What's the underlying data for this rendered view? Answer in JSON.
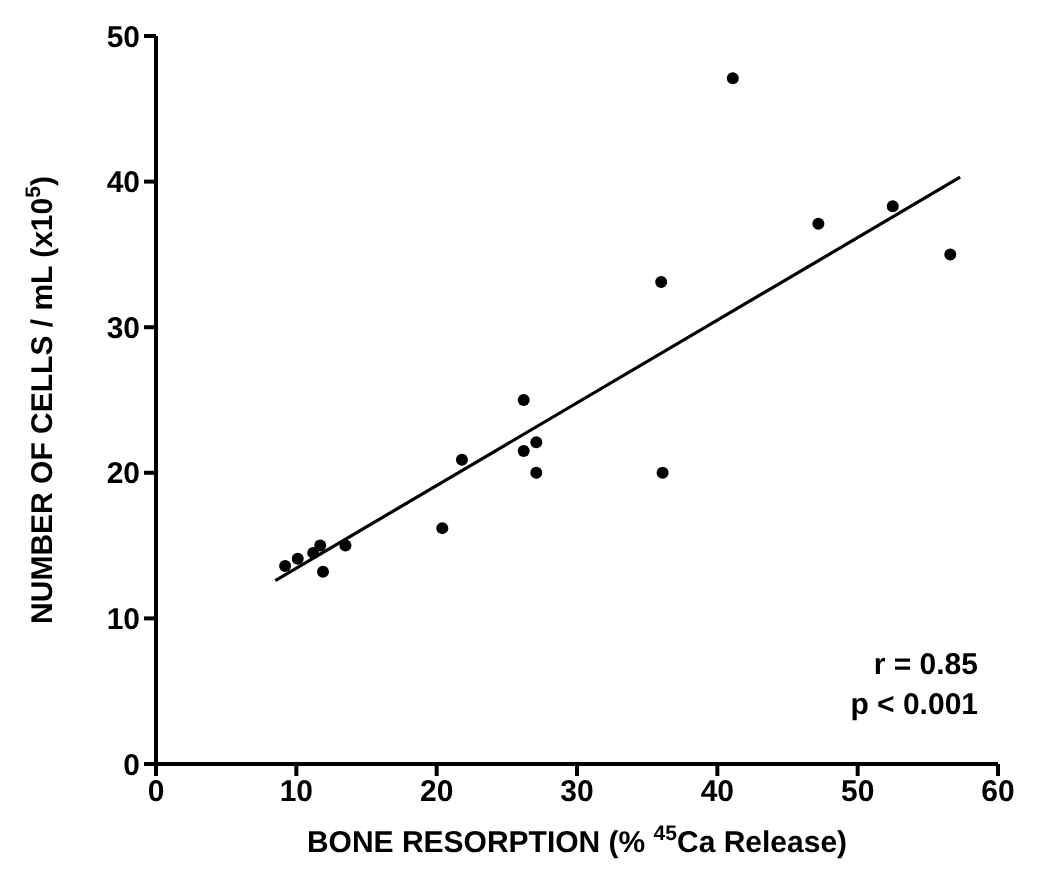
{
  "chart_data": {
    "type": "scatter",
    "xlabel": "BONE RESORPTION (% $^{45}$Ca Release)",
    "ylabel": "NUMBER OF CELLS / mL (x10$^{5}$)",
    "x": [
      9.2,
      10.1,
      11.2,
      11.7,
      11.9,
      13.5,
      20.4,
      21.8,
      26.2,
      26.2,
      27.1,
      27.1,
      36.0,
      36.1,
      41.1,
      47.2,
      52.5,
      56.6
    ],
    "series": [
      {
        "color": "#000000",
        "marker": "circle",
        "values": [
          13.6,
          14.1,
          14.5,
          15.0,
          13.2,
          15.0,
          16.2,
          20.9,
          25.0,
          21.5,
          22.1,
          20.0,
          33.1,
          20.0,
          47.1,
          37.1,
          38.3,
          35.0
        ]
      },
      {
        "type": "line",
        "color": "#000000",
        "line_style": "solid",
        "marker": "none",
        "x": [
          8.5,
          57.3
        ],
        "values": [
          12.6,
          40.3
        ]
      }
    ],
    "xlim": [
      0,
      60
    ],
    "xticks": [
      0,
      10,
      20,
      30,
      40,
      50,
      60
    ],
    "ylim": [
      0,
      50
    ],
    "yticks": [
      0,
      10,
      20,
      30,
      40,
      50
    ],
    "grid": false,
    "legend": false,
    "annotations": [
      "r = 0.85",
      "p < 0.001"
    ]
  }
}
